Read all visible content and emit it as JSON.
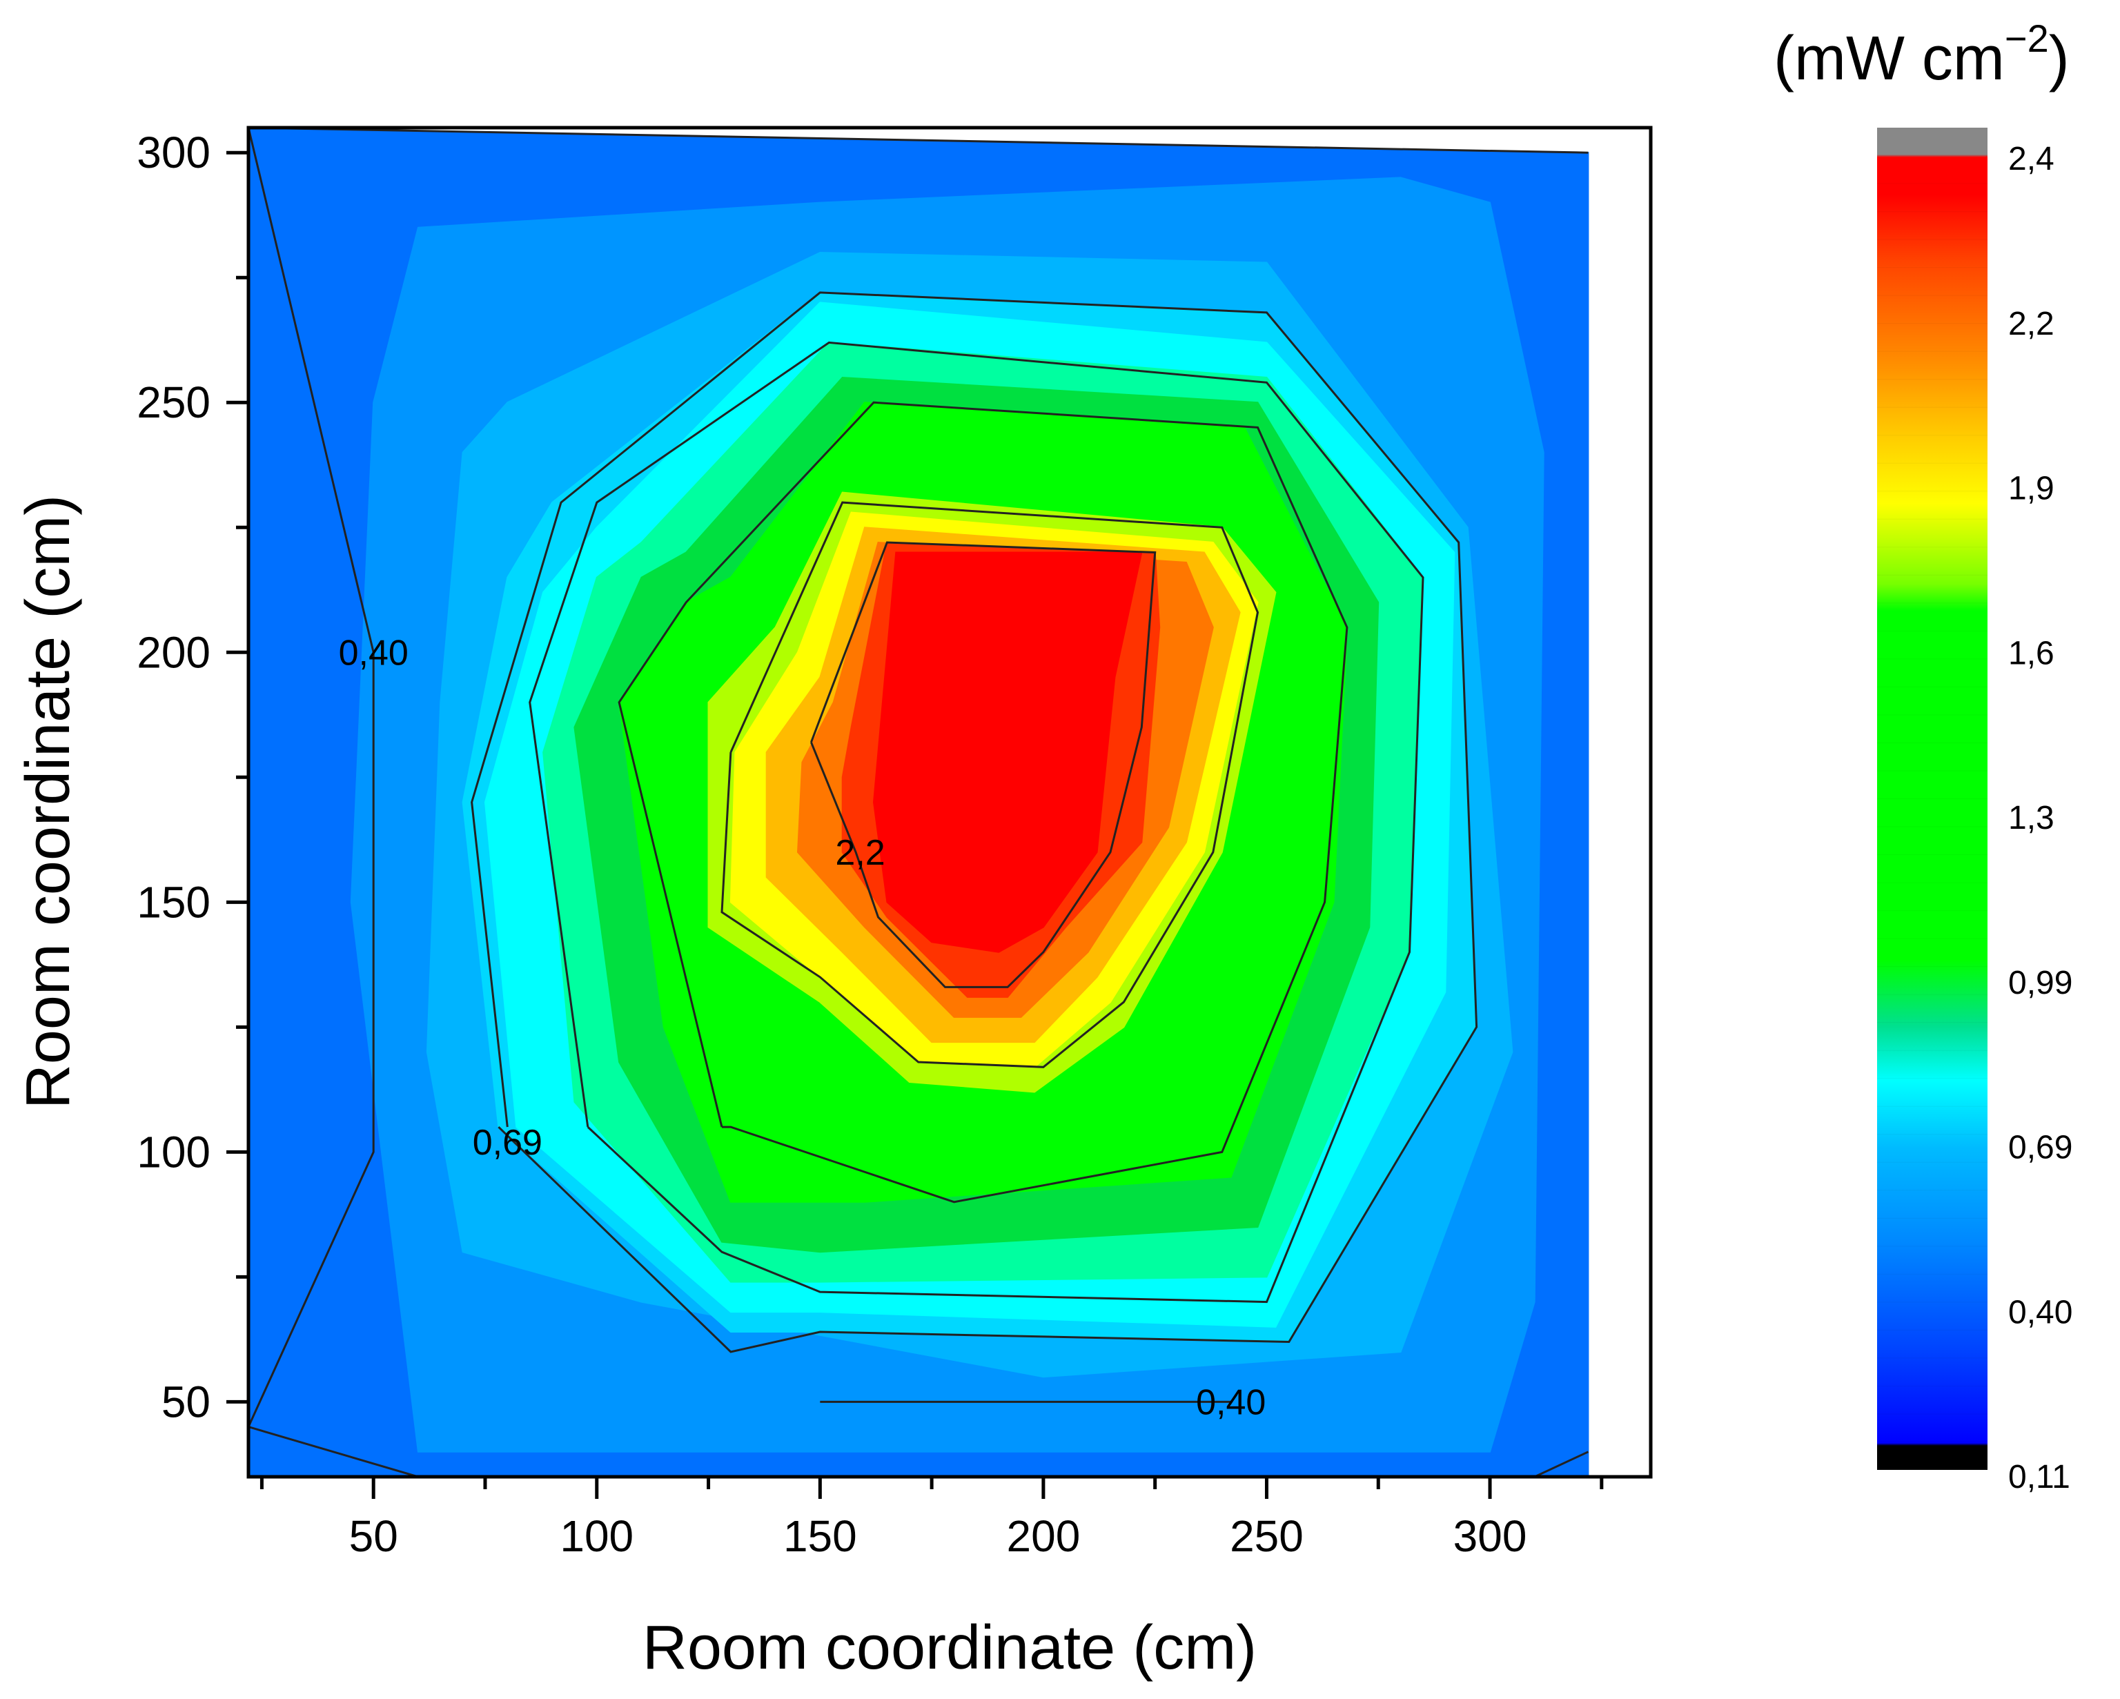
{
  "chart_data": {
    "type": "contour",
    "title": "",
    "xlabel": "Room coordinate (cm)",
    "ylabel": "Room coordinate (cm)",
    "xlim": [
      22,
      336
    ],
    "ylim": [
      35,
      305
    ],
    "x_ticks": [
      "50",
      "100",
      "150",
      "200",
      "250",
      "300"
    ],
    "x_tick_values": [
      50,
      100,
      150,
      200,
      250,
      300
    ],
    "y_ticks": [
      "50",
      "100",
      "150",
      "200",
      "250",
      "300"
    ],
    "y_tick_values": [
      50,
      100,
      150,
      200,
      250,
      300
    ],
    "colorbar": {
      "unit": "(mW cm",
      "unit_exp": "−2",
      "unit_close": ")",
      "range": [
        0.11,
        2.4
      ],
      "labels": [
        "2,4",
        "2,2",
        "1,9",
        "1,6",
        "1,3",
        "0,99",
        "0,69",
        "0,40",
        "0,11"
      ],
      "colors": [
        "#000000",
        "#0000ff",
        "#0044ff",
        "#0088ff",
        "#00ccff",
        "#00ffff",
        "#00dd55",
        "#00ff00",
        "#66ff00",
        "#ffff00",
        "#ffcc00",
        "#ff8800",
        "#ff4400",
        "#ff0000",
        "#888888"
      ]
    },
    "contour_levels": [
      {
        "level": 0.4,
        "label": "0,40"
      },
      {
        "level": 0.69,
        "label": "0,69"
      },
      {
        "level": 1.0,
        "label": ""
      },
      {
        "level": 1.3,
        "label": ""
      },
      {
        "level": 1.6,
        "label": ""
      },
      {
        "level": 1.9,
        "label": ""
      },
      {
        "level": 2.2,
        "label": "2,2"
      }
    ],
    "inline_labels": [
      {
        "text": "0,40",
        "x": 50,
        "y": 200
      },
      {
        "text": "0,69",
        "x": 80,
        "y": 102
      },
      {
        "text": "2,2",
        "x": 159,
        "y": 160
      },
      {
        "text": "0,40",
        "x": 242,
        "y": 50
      }
    ],
    "bands": [
      {
        "color": "#0070ff",
        "points": [
          [
            22,
            305
          ],
          [
            322,
            300
          ],
          [
            322,
            35
          ],
          [
            22,
            35
          ]
        ]
      },
      {
        "color": "#0095ff",
        "points": [
          [
            60,
            285
          ],
          [
            150,
            290
          ],
          [
            280,
            295
          ],
          [
            300,
            290
          ],
          [
            312,
            240
          ],
          [
            310,
            70
          ],
          [
            300,
            40
          ],
          [
            150,
            40
          ],
          [
            60,
            40
          ],
          [
            45,
            150
          ],
          [
            50,
            250
          ]
        ]
      },
      {
        "color": "#00b4ff",
        "points": [
          [
            80,
            250
          ],
          [
            150,
            280
          ],
          [
            250,
            278
          ],
          [
            295,
            225
          ],
          [
            305,
            120
          ],
          [
            280,
            60
          ],
          [
            200,
            55
          ],
          [
            110,
            70
          ],
          [
            70,
            80
          ],
          [
            62,
            120
          ],
          [
            65,
            190
          ],
          [
            70,
            240
          ]
        ]
      },
      {
        "color": "#00d8ff",
        "points": [
          [
            90,
            230
          ],
          [
            150,
            272
          ],
          [
            250,
            268
          ],
          [
            293,
            222
          ],
          [
            297,
            125
          ],
          [
            255,
            62
          ],
          [
            150,
            64
          ],
          [
            130,
            64
          ],
          [
            78,
            105
          ],
          [
            70,
            170
          ],
          [
            80,
            215
          ]
        ]
      },
      {
        "color": "#00ffff",
        "points": [
          [
            100,
            225
          ],
          [
            150,
            270
          ],
          [
            250,
            262
          ],
          [
            292,
            220
          ],
          [
            290,
            132
          ],
          [
            252,
            65
          ],
          [
            150,
            68
          ],
          [
            130,
            68
          ],
          [
            82,
            105
          ],
          [
            75,
            170
          ],
          [
            88,
            212
          ]
        ]
      },
      {
        "color": "#00ffa0",
        "points": [
          [
            110,
            222
          ],
          [
            152,
            262
          ],
          [
            250,
            255
          ],
          [
            285,
            215
          ],
          [
            282,
            140
          ],
          [
            250,
            75
          ],
          [
            150,
            74
          ],
          [
            130,
            74
          ],
          [
            95,
            110
          ],
          [
            88,
            180
          ],
          [
            100,
            215
          ]
        ]
      },
      {
        "color": "#00e040",
        "points": [
          [
            120,
            220
          ],
          [
            155,
            255
          ],
          [
            248,
            250
          ],
          [
            275,
            210
          ],
          [
            273,
            145
          ],
          [
            248,
            85
          ],
          [
            150,
            80
          ],
          [
            128,
            82
          ],
          [
            105,
            118
          ],
          [
            95,
            185
          ],
          [
            110,
            215
          ]
        ]
      },
      {
        "color": "#00ff00",
        "points": [
          [
            130,
            215
          ],
          [
            160,
            250
          ],
          [
            245,
            245
          ],
          [
            268,
            205
          ],
          [
            265,
            150
          ],
          [
            242,
            95
          ],
          [
            160,
            90
          ],
          [
            130,
            90
          ],
          [
            115,
            125
          ],
          [
            105,
            190
          ],
          [
            120,
            210
          ]
        ]
      },
      {
        "color": "#b0ff00",
        "points": [
          [
            140,
            205
          ],
          [
            155,
            232
          ],
          [
            240,
            225
          ],
          [
            252,
            212
          ],
          [
            240,
            160
          ],
          [
            218,
            125
          ],
          [
            198,
            112
          ],
          [
            170,
            114
          ],
          [
            150,
            130
          ],
          [
            125,
            145
          ],
          [
            125,
            190
          ]
        ]
      },
      {
        "color": "#ffff00",
        "points": [
          [
            145,
            200
          ],
          [
            157,
            228
          ],
          [
            238,
            222
          ],
          [
            248,
            210
          ],
          [
            236,
            160
          ],
          [
            215,
            130
          ],
          [
            198,
            117
          ],
          [
            172,
            118
          ],
          [
            150,
            135
          ],
          [
            130,
            150
          ],
          [
            131,
            180
          ]
        ]
      },
      {
        "color": "#ffbb00",
        "points": [
          [
            150,
            195
          ],
          [
            160,
            225
          ],
          [
            236,
            220
          ],
          [
            244,
            208
          ],
          [
            232,
            162
          ],
          [
            212,
            135
          ],
          [
            198,
            122
          ],
          [
            175,
            122
          ],
          [
            155,
            140
          ],
          [
            138,
            155
          ],
          [
            138,
            180
          ]
        ]
      },
      {
        "color": "#ff7700",
        "points": [
          [
            153,
            190
          ],
          [
            163,
            222
          ],
          [
            232,
            218
          ],
          [
            238,
            205
          ],
          [
            228,
            165
          ],
          [
            210,
            140
          ],
          [
            195,
            127
          ],
          [
            180,
            127
          ],
          [
            160,
            145
          ],
          [
            145,
            160
          ],
          [
            146,
            178
          ]
        ]
      },
      {
        "color": "#ff3300",
        "points": [
          [
            157,
            185
          ],
          [
            165,
            222
          ],
          [
            225,
            220
          ],
          [
            226,
            205
          ],
          [
            222,
            162
          ],
          [
            205,
            145
          ],
          [
            192,
            131
          ],
          [
            183,
            131
          ],
          [
            165,
            147
          ],
          [
            155,
            160
          ],
          [
            155,
            175
          ]
        ]
      },
      {
        "color": "#ff0000",
        "points": [
          [
            165,
            200
          ],
          [
            167,
            220
          ],
          [
            222,
            220
          ],
          [
            216,
            195
          ],
          [
            212,
            160
          ],
          [
            200,
            145
          ],
          [
            190,
            140
          ],
          [
            175,
            142
          ],
          [
            165,
            150
          ],
          [
            162,
            170
          ]
        ]
      }
    ],
    "contour_lines": [
      {
        "points": [
          [
            22,
            305
          ],
          [
            322,
            300
          ]
        ]
      },
      {
        "points": [
          [
            22,
            305
          ],
          [
            50,
            200
          ],
          [
            50,
            100
          ],
          [
            22,
            45
          ],
          [
            60,
            35
          ]
        ]
      },
      {
        "points": [
          [
            322,
            40
          ],
          [
            310,
            35
          ]
        ]
      },
      {
        "points": [
          [
            150,
            50
          ],
          [
            242,
            50
          ]
        ]
      },
      {
        "points": [
          [
            80,
            105
          ],
          [
            72,
            170
          ],
          [
            92,
            230
          ],
          [
            150,
            272
          ],
          [
            250,
            268
          ],
          [
            293,
            222
          ],
          [
            297,
            125
          ],
          [
            255,
            62
          ],
          [
            150,
            64
          ],
          [
            130,
            60
          ],
          [
            78,
            105
          ]
        ]
      },
      {
        "points": [
          [
            98,
            105
          ],
          [
            85,
            190
          ],
          [
            100,
            230
          ],
          [
            152,
            262
          ],
          [
            250,
            254
          ],
          [
            285,
            215
          ],
          [
            282,
            140
          ],
          [
            250,
            70
          ],
          [
            150,
            72
          ],
          [
            128,
            80
          ],
          [
            98,
            105
          ]
        ]
      },
      {
        "points": [
          [
            128,
            105
          ],
          [
            105,
            190
          ],
          [
            120,
            210
          ],
          [
            162,
            250
          ],
          [
            248,
            245
          ],
          [
            268,
            205
          ],
          [
            263,
            150
          ],
          [
            240,
            100
          ],
          [
            180,
            90
          ],
          [
            130,
            105
          ],
          [
            128,
            105
          ]
        ]
      },
      {
        "points": [
          [
            130,
            180
          ],
          [
            140,
            200
          ],
          [
            155,
            230
          ],
          [
            240,
            225
          ],
          [
            248,
            208
          ],
          [
            238,
            160
          ],
          [
            218,
            130
          ],
          [
            200,
            117
          ],
          [
            172,
            118
          ],
          [
            150,
            135
          ],
          [
            128,
            148
          ],
          [
            130,
            180
          ]
        ]
      },
      {
        "points": [
          [
            148,
            182
          ],
          [
            165,
            222
          ],
          [
            225,
            220
          ],
          [
            222,
            185
          ],
          [
            215,
            160
          ],
          [
            200,
            140
          ],
          [
            192,
            133
          ],
          [
            178,
            133
          ],
          [
            163,
            147
          ],
          [
            158,
            160
          ],
          [
            148,
            182
          ]
        ]
      }
    ]
  }
}
